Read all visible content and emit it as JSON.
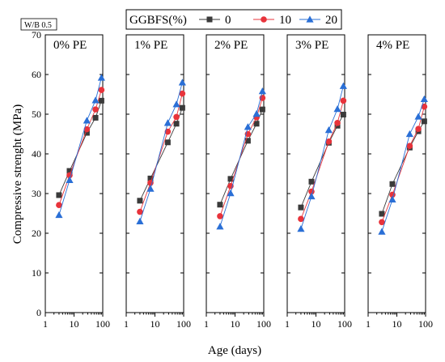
{
  "chart_data": {
    "type": "scatter",
    "badge": "W/B 0.5",
    "legend": {
      "title": "GGBFS(%)",
      "placement": "top"
    },
    "ylabel": "Compressive strenght (MPa)",
    "xlabel": "Age (days)",
    "ylim": [
      0,
      70
    ],
    "yticks": [
      0,
      10,
      20,
      30,
      40,
      50,
      60,
      70
    ],
    "xscale": "log",
    "xlim": [
      1,
      100
    ],
    "xticks": [
      1,
      10,
      100
    ],
    "x": [
      3,
      7,
      28,
      56,
      90
    ],
    "series_style": [
      {
        "name": "0",
        "color": "#3a3a3a",
        "marker": "square"
      },
      {
        "name": "10",
        "color": "#e8333b",
        "marker": "circle"
      },
      {
        "name": "20",
        "color": "#2a6fd6",
        "marker": "triangle"
      }
    ],
    "panels": [
      {
        "title": "0% PE",
        "series": [
          {
            "name": "0",
            "values": [
              29.6,
              35.7,
              45.3,
              49.1,
              53.4
            ]
          },
          {
            "name": "10",
            "values": [
              27.1,
              34.6,
              46.2,
              51.2,
              56.1
            ]
          },
          {
            "name": "20",
            "values": [
              24.6,
              33.4,
              48.4,
              53.5,
              59.2
            ]
          }
        ]
      },
      {
        "title": "1% PE",
        "series": [
          {
            "name": "0",
            "values": [
              28.2,
              33.8,
              42.9,
              47.6,
              51.6
            ]
          },
          {
            "name": "10",
            "values": [
              25.4,
              32.7,
              45.6,
              49.3,
              55.2
            ]
          },
          {
            "name": "20",
            "values": [
              23.0,
              31.2,
              47.8,
              52.5,
              58.0
            ]
          }
        ]
      },
      {
        "title": "2% PE",
        "series": [
          {
            "name": "0",
            "values": [
              27.2,
              33.7,
              43.3,
              47.6,
              51.2
            ]
          },
          {
            "name": "10",
            "values": [
              24.3,
              31.9,
              45.0,
              49.2,
              54.1
            ]
          },
          {
            "name": "20",
            "values": [
              21.7,
              30.1,
              46.8,
              50.1,
              55.8
            ]
          }
        ]
      },
      {
        "title": "3% PE",
        "series": [
          {
            "name": "0",
            "values": [
              26.5,
              33.0,
              42.8,
              47.1,
              49.9
            ]
          },
          {
            "name": "10",
            "values": [
              23.6,
              30.5,
              43.1,
              47.8,
              53.4
            ]
          },
          {
            "name": "20",
            "values": [
              21.1,
              29.3,
              46.0,
              51.3,
              57.1
            ]
          }
        ]
      },
      {
        "title": "4% PE",
        "series": [
          {
            "name": "0",
            "values": [
              24.9,
              32.4,
              41.6,
              45.7,
              48.2
            ]
          },
          {
            "name": "10",
            "values": [
              22.8,
              29.7,
              42.0,
              46.3,
              51.9
            ]
          },
          {
            "name": "20",
            "values": [
              20.4,
              28.5,
              45.0,
              49.4,
              53.8
            ]
          }
        ]
      }
    ]
  }
}
